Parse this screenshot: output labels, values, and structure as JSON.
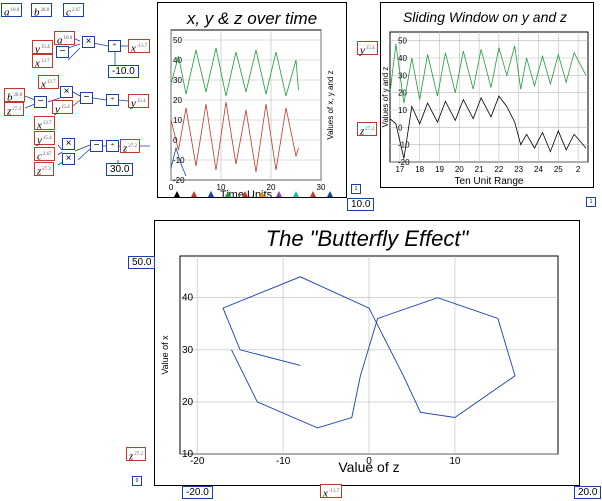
{
  "wiring": {
    "top_inputs": [
      {
        "name": "a",
        "value": "10.0"
      },
      {
        "name": "b",
        "value": "28.0"
      },
      {
        "name": "c",
        "value": "2.67"
      }
    ],
    "blocks": [
      {
        "name": "a",
        "value": "10.0"
      },
      {
        "name": "y",
        "value": "15.4"
      },
      {
        "name": "x",
        "value": "13.7"
      },
      {
        "name": "x",
        "value": "-13.7"
      },
      {
        "name": "b",
        "value": "28.0"
      },
      {
        "name": "z",
        "value": "27.2"
      },
      {
        "name": "x",
        "value": "13.7"
      },
      {
        "name": "y",
        "value": "15.4"
      },
      {
        "name": "y",
        "value": "15.4"
      },
      {
        "name": "x",
        "value": "13.7"
      },
      {
        "name": "y",
        "value": "15.4"
      },
      {
        "name": "c",
        "value": "2.67"
      },
      {
        "name": "z",
        "value": "27.2"
      },
      {
        "name": "z",
        "value": "27.2"
      }
    ],
    "constants": {
      "k1": "-10.0",
      "k2": "30.0",
      "k3": "10.0",
      "k4": "50.0",
      "k5": "-20.0",
      "k6": "20.0"
    },
    "tiny_labels": {
      "t1": "1",
      "t2": "1",
      "t3": "0"
    },
    "side_vars": [
      {
        "name": "y",
        "value": "15.4"
      },
      {
        "name": "z",
        "value": "27.2"
      },
      {
        "name": "z",
        "value": "27.2"
      },
      {
        "name": "x",
        "value": "-13.7"
      }
    ]
  },
  "chart_data": [
    {
      "type": "line",
      "title": "x, y & z over time",
      "xlabel": "Time Units",
      "ylabel": "Values of x, y and z",
      "xlim": [
        0,
        30
      ],
      "ylim": [
        -20,
        55
      ],
      "xticks": [
        "0",
        "10",
        "20",
        "30"
      ],
      "yticks": [
        "50",
        "40",
        "30",
        "20",
        "10",
        "0",
        "-10",
        "-20"
      ],
      "grid": true,
      "series": [
        {
          "color": "#1e9e3a",
          "label": "z",
          "values": [
            [
              0,
              28
            ],
            [
              1.5,
              42
            ],
            [
              3,
              23
            ],
            [
              5,
              45
            ],
            [
              7,
              24
            ],
            [
              9,
              46
            ],
            [
              11,
              22
            ],
            [
              13,
              44
            ],
            [
              15,
              24
            ],
            [
              17,
              45
            ],
            [
              19,
              23
            ],
            [
              21,
              44
            ],
            [
              23,
              22
            ],
            [
              25,
              40
            ],
            [
              25.5,
              25
            ]
          ]
        },
        {
          "color": "#c0392b",
          "label": "y",
          "values": [
            [
              0,
              10
            ],
            [
              1.5,
              -5
            ],
            [
              3,
              16
            ],
            [
              5,
              -13
            ],
            [
              7,
              18
            ],
            [
              9,
              -15
            ],
            [
              11,
              19
            ],
            [
              13,
              -12
            ],
            [
              15,
              15
            ],
            [
              17,
              -16
            ],
            [
              19,
              18
            ],
            [
              21,
              -15
            ],
            [
              23,
              16
            ],
            [
              25,
              -8
            ],
            [
              25.5,
              -4
            ]
          ]
        },
        {
          "color": "#1a3fb0",
          "label": "x",
          "values": [
            [
              0,
              -14
            ],
            [
              1,
              -4
            ],
            [
              2,
              -12
            ],
            [
              3,
              -18
            ]
          ]
        }
      ]
    },
    {
      "type": "line",
      "title": "Sliding Window on y and z",
      "xlabel": "Ten Unit Range",
      "ylabel": "Values of y and z",
      "xlim": [
        16.5,
        26.5
      ],
      "ylim": [
        -20,
        55
      ],
      "xticks": [
        "17",
        "18",
        "19",
        "20",
        "21",
        "22",
        "23",
        "24",
        "25",
        "2"
      ],
      "yticks": [
        "50",
        "40",
        "30",
        "20",
        "10",
        "0",
        "-10",
        "-20"
      ],
      "grid": true,
      "series": [
        {
          "color": "#1e9e3a",
          "label": "z",
          "values": [
            [
              16.5,
              20
            ],
            [
              16.8,
              48
            ],
            [
              17.2,
              14
            ],
            [
              17.6,
              40
            ],
            [
              18.0,
              16
            ],
            [
              18.4,
              42
            ],
            [
              18.9,
              18
            ],
            [
              19.3,
              43
            ],
            [
              19.8,
              20
            ],
            [
              20.2,
              44
            ],
            [
              20.7,
              22
            ],
            [
              21.1,
              45
            ],
            [
              21.6,
              23
            ],
            [
              22.0,
              46
            ],
            [
              22.4,
              30
            ],
            [
              22.8,
              47
            ],
            [
              23.1,
              22
            ],
            [
              23.4,
              40
            ],
            [
              23.8,
              24
            ],
            [
              24.2,
              41
            ],
            [
              24.6,
              25
            ],
            [
              25.0,
              42
            ],
            [
              25.4,
              26
            ],
            [
              25.8,
              43
            ],
            [
              26.4,
              30
            ]
          ]
        },
        {
          "color": "#000000",
          "label": "y",
          "values": [
            [
              16.5,
              5
            ],
            [
              16.8,
              2
            ],
            [
              17.2,
              -18
            ],
            [
              17.6,
              12
            ],
            [
              18.0,
              2
            ],
            [
              18.4,
              14
            ],
            [
              18.9,
              3
            ],
            [
              19.3,
              15
            ],
            [
              19.8,
              4
            ],
            [
              20.2,
              16
            ],
            [
              20.7,
              5
            ],
            [
              21.1,
              17
            ],
            [
              21.6,
              6
            ],
            [
              22.0,
              18
            ],
            [
              22.4,
              12
            ],
            [
              22.8,
              3
            ],
            [
              23.1,
              -10
            ],
            [
              23.4,
              -4
            ],
            [
              23.8,
              -12
            ],
            [
              24.2,
              -3
            ],
            [
              24.6,
              -14
            ],
            [
              25.0,
              -2
            ],
            [
              25.4,
              -13
            ],
            [
              25.8,
              -4
            ],
            [
              26.4,
              -12
            ]
          ]
        }
      ]
    },
    {
      "type": "line",
      "title": "The \"Butterfly Effect\"",
      "xlabel": "Value of z",
      "ylabel": "Value of x",
      "xlim": [
        -22,
        22
      ],
      "ylim": [
        10,
        48
      ],
      "xticks": [
        "-20",
        "-10",
        "0",
        "10"
      ],
      "yticks": [
        "40",
        "30",
        "20",
        "10"
      ],
      "grid": true,
      "series": [
        {
          "color": "#1a3fb0",
          "label": "trajectory",
          "values": [
            [
              -8,
              27
            ],
            [
              -15,
              30
            ],
            [
              -17,
              38
            ],
            [
              -8,
              44
            ],
            [
              0,
              38
            ],
            [
              4,
              25
            ],
            [
              6,
              18
            ],
            [
              10,
              17
            ],
            [
              17,
              25
            ],
            [
              15,
              36
            ],
            [
              8,
              40
            ],
            [
              1,
              36
            ],
            [
              -1,
              25
            ],
            [
              -2,
              17
            ],
            [
              -6,
              15
            ],
            [
              -13,
              20
            ],
            [
              -16,
              30
            ]
          ]
        }
      ]
    }
  ]
}
